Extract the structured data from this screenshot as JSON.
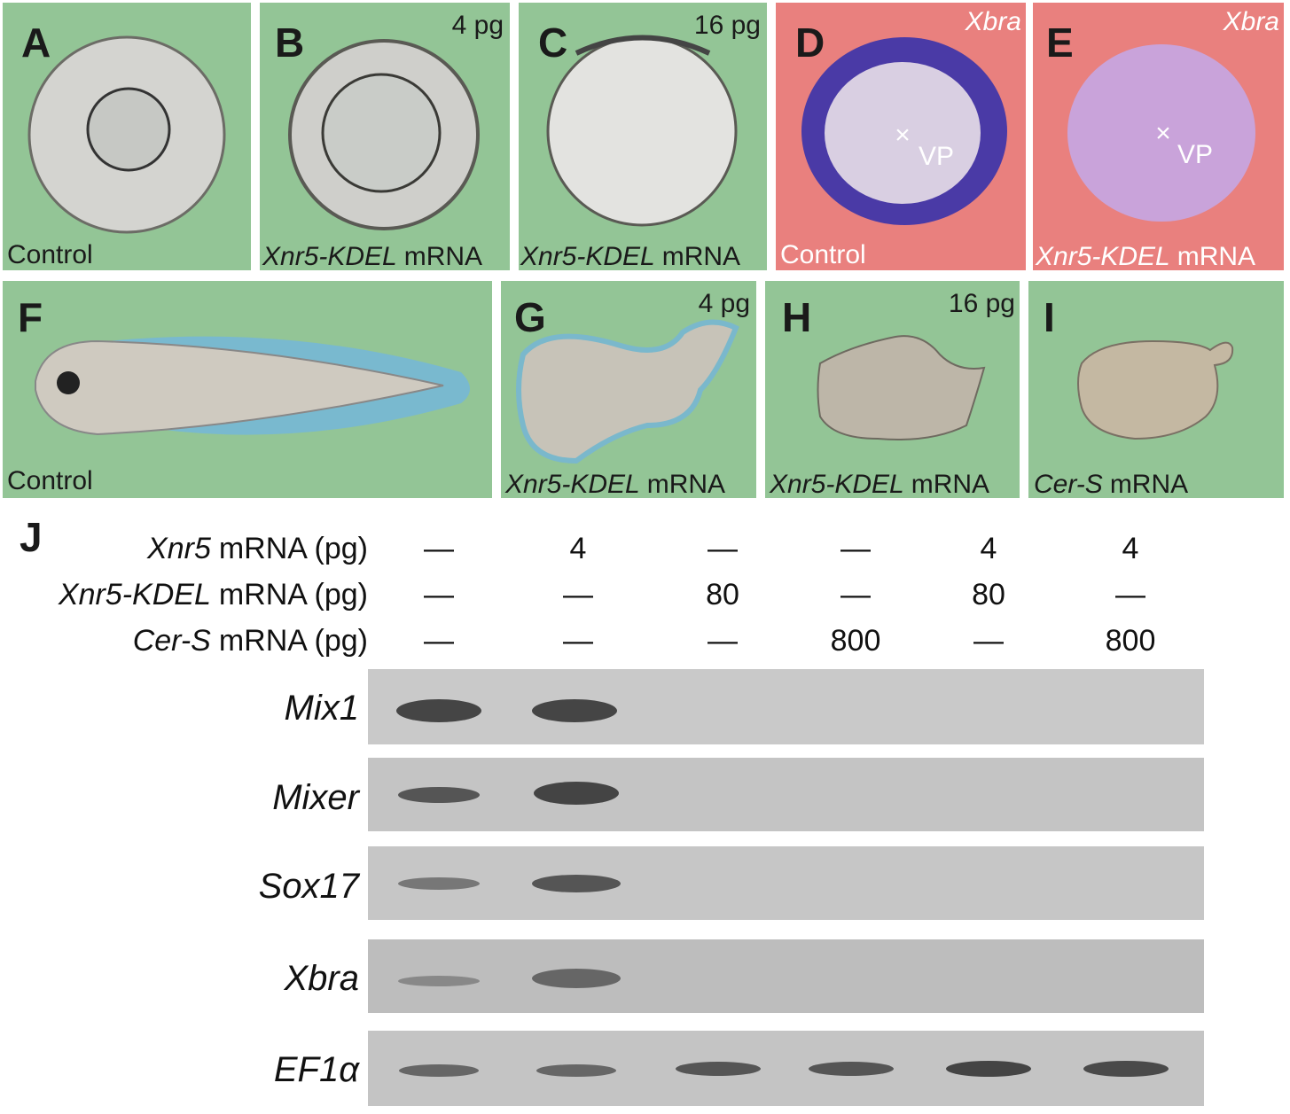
{
  "panels": [
    {
      "letter": "A",
      "caption": "Control"
    },
    {
      "letter": "B",
      "dose": "4 pg",
      "caption_gene": "Xnr5-KDEL",
      "caption_rest": "mRNA"
    },
    {
      "letter": "C",
      "dose": "16 pg",
      "caption_gene": "Xnr5-KDEL",
      "caption_rest": "mRNA"
    },
    {
      "letter": "D",
      "probe": "Xbra",
      "point": "×",
      "point_label": "VP",
      "caption": "Control"
    },
    {
      "letter": "E",
      "probe": "Xbra",
      "point": "×",
      "point_label": "VP",
      "caption_gene": "Xnr5-KDEL",
      "caption_rest": "mRNA"
    },
    {
      "letter": "F",
      "caption": "Control"
    },
    {
      "letter": "G",
      "dose": "4 pg",
      "caption_gene": "Xnr5-KDEL",
      "caption_rest": "mRNA"
    },
    {
      "letter": "H",
      "dose": "16 pg",
      "caption_gene": "Xnr5-KDEL",
      "caption_rest": "mRNA"
    },
    {
      "letter": "I",
      "caption_gene": "Cer-S",
      "caption_rest": "mRNA"
    }
  ],
  "panel_j": {
    "letter": "J",
    "rows": [
      {
        "gene": "Xnr5",
        "rest": "mRNA (pg)",
        "values": [
          "—",
          "4",
          "—",
          "—",
          "4",
          "4"
        ]
      },
      {
        "gene": "Xnr5-KDEL",
        "rest": "mRNA (pg)",
        "values": [
          "—",
          "—",
          "80",
          "—",
          "80",
          "—"
        ]
      },
      {
        "gene": "Cer-S",
        "rest": "mRNA (pg)",
        "values": [
          "—",
          "—",
          "—",
          "800",
          "—",
          "800"
        ]
      }
    ],
    "gels": [
      "Mix1",
      "Mixer",
      "Sox17",
      "Xbra",
      "EF1α"
    ]
  }
}
